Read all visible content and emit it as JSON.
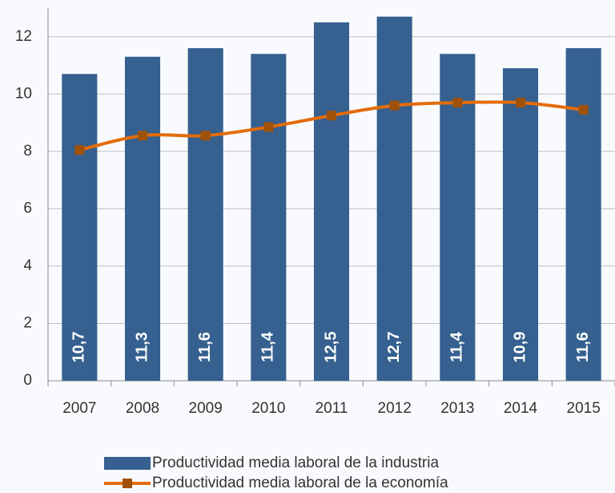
{
  "chart_data": {
    "type": "bar",
    "categories": [
      "2007",
      "2008",
      "2009",
      "2010",
      "2011",
      "2012",
      "2013",
      "2014",
      "2015"
    ],
    "series": [
      {
        "name": "Productividad media laboral de la industria",
        "type": "bar",
        "color": "#35608f",
        "values": [
          10.7,
          11.3,
          11.6,
          11.4,
          12.5,
          12.7,
          11.4,
          10.9,
          11.6
        ],
        "value_labels": [
          "10,7",
          "11,3",
          "11,6",
          "11,4",
          "12,5",
          "12,7",
          "11,4",
          "10,9",
          "11,6"
        ]
      },
      {
        "name": "Productividad media laboral de la economía",
        "type": "line",
        "color": "#e46c0a",
        "values": [
          8.05,
          8.55,
          8.55,
          8.85,
          9.25,
          9.6,
          9.7,
          9.7,
          9.45
        ]
      }
    ],
    "ylim": [
      0,
      13
    ],
    "yticks": [
      0,
      2,
      4,
      6,
      8,
      10,
      12
    ],
    "grid": true,
    "legend": "bottom"
  }
}
